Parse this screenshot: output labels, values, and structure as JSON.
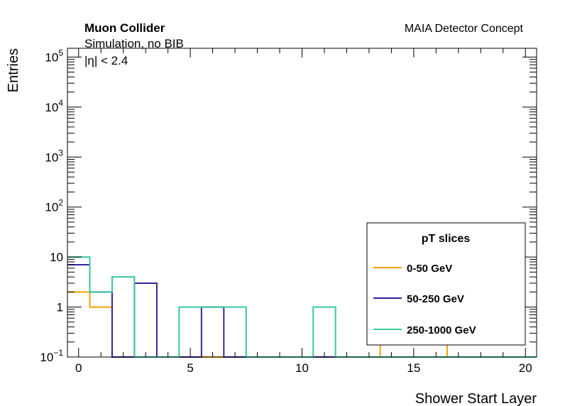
{
  "header": {
    "experiment": "Muon Collider",
    "simulation": "Simulation, no BIB",
    "cut": "|η| < 2.4",
    "concept": "MAIA Detector Concept"
  },
  "chart_data": {
    "type": "histogram",
    "xlabel": "Shower Start Layer",
    "ylabel": "Entries",
    "xlim": [
      -0.5,
      20.5
    ],
    "ylim": [
      0.1,
      150000
    ],
    "yscale": "log",
    "x_ticks": [
      0,
      5,
      10,
      15,
      20
    ],
    "y_ticks": [
      {
        "value": 0.1,
        "base": "10",
        "exp": "−1"
      },
      {
        "value": 1,
        "base": "1",
        "exp": ""
      },
      {
        "value": 10,
        "base": "10",
        "exp": ""
      },
      {
        "value": 100,
        "base": "10",
        "exp": "2"
      },
      {
        "value": 1000,
        "base": "10",
        "exp": "3"
      },
      {
        "value": 10000,
        "base": "10",
        "exp": "4"
      },
      {
        "value": 100000,
        "base": "10",
        "exp": "5"
      }
    ],
    "bin_edges": [
      -0.5,
      0.5,
      1.5,
      2.5,
      3.5,
      4.5,
      5.5,
      6.5,
      7.5,
      8.5,
      9.5,
      10.5,
      11.5,
      12.5,
      13.5,
      14.5,
      15.5,
      16.5,
      17.5,
      18.5,
      19.5,
      20.5
    ],
    "legend": {
      "title": "pT slices",
      "placement": "bottom-right"
    },
    "series": [
      {
        "name": "0-50 GeV",
        "color": "#f5a300",
        "values": [
          2,
          1,
          0,
          0,
          0,
          0,
          0,
          0,
          0,
          0,
          0,
          0,
          0,
          0,
          1,
          1,
          1,
          0,
          0,
          0,
          0
        ]
      },
      {
        "name": "50-250 GeV",
        "color": "#3d1fa0",
        "values": [
          7,
          2,
          0,
          3,
          0,
          0,
          1,
          0,
          0,
          0,
          0,
          0,
          0,
          0,
          0,
          0,
          0,
          0,
          0,
          0,
          0
        ]
      },
      {
        "name": "250-1000 GeV",
        "color": "#36c9a0",
        "values": [
          10,
          2,
          4,
          0,
          0,
          1,
          1,
          1,
          0,
          0,
          0,
          1,
          0,
          0,
          0,
          0,
          0,
          0,
          0,
          0,
          0
        ]
      }
    ]
  }
}
